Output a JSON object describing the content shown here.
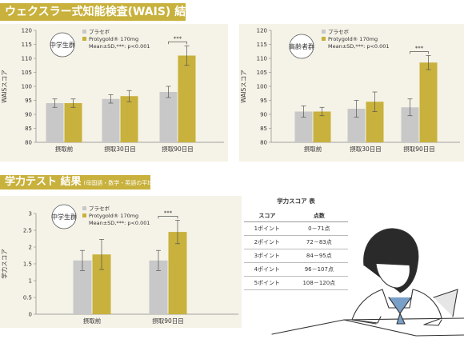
{
  "banners": {
    "wais": "ウェクスラー式知能検査(WAIS) 結果",
    "gakuryoku": "学力テスト 結果",
    "gakuryoku_sub": "(母国語・数学・英語の平均)"
  },
  "colors": {
    "placebo": "#c8c8c8",
    "protygold": "#c8b13c",
    "panel": "#f5f2e7",
    "banner": "#c8b13c"
  },
  "legend": {
    "placebo": "プラセボ",
    "protygold": "Protygold® 170mg",
    "note": "Mean±SD,***: p<0.001"
  },
  "chart_data": [
    {
      "type": "bar",
      "group_label": "中学生群",
      "ylabel": "WAISスコア",
      "ylim": [
        80,
        120
      ],
      "yticks": [
        80,
        85,
        90,
        95,
        100,
        105,
        110,
        115,
        120
      ],
      "categories": [
        "摂取前",
        "摂取30日目",
        "摂取90日目"
      ],
      "series": [
        {
          "name": "プラセボ",
          "values": [
            94,
            95.5,
            98
          ],
          "err": [
            1.5,
            1.5,
            2
          ]
        },
        {
          "name": "Protygold® 170mg",
          "values": [
            94,
            96.5,
            111
          ],
          "err": [
            1.5,
            2,
            3.5
          ]
        }
      ],
      "significance": [
        {
          "category": 2,
          "label": "***"
        }
      ]
    },
    {
      "type": "bar",
      "group_label": "高齢者群",
      "ylabel": "WAISスコア",
      "ylim": [
        80,
        120
      ],
      "yticks": [
        80,
        85,
        90,
        95,
        100,
        105,
        110,
        115,
        120
      ],
      "categories": [
        "摂取前",
        "摂取30日目",
        "摂取90日目"
      ],
      "series": [
        {
          "name": "プラセボ",
          "values": [
            91,
            92,
            92.5
          ],
          "err": [
            2,
            3,
            3
          ]
        },
        {
          "name": "Protygold® 170mg",
          "values": [
            91,
            94.5,
            108.5
          ],
          "err": [
            1.5,
            3.5,
            2.5
          ]
        }
      ],
      "significance": [
        {
          "category": 2,
          "label": "***"
        }
      ]
    },
    {
      "type": "bar",
      "group_label": "中学生群",
      "ylabel": "学力スコア",
      "ylim": [
        0,
        3
      ],
      "yticks": [
        0,
        0.5,
        1,
        1.5,
        2,
        2.5,
        3
      ],
      "categories": [
        "摂取前",
        "摂取90日目"
      ],
      "series": [
        {
          "name": "プラセボ",
          "values": [
            1.6,
            1.6
          ],
          "err": [
            0.3,
            0.3
          ]
        },
        {
          "name": "Protygold® 170mg",
          "values": [
            1.78,
            2.45
          ],
          "err": [
            0.45,
            0.35
          ]
        }
      ],
      "significance": [
        {
          "category": 1,
          "label": "***"
        }
      ]
    }
  ],
  "score_table": {
    "title": "学力スコア 表",
    "headers": [
      "スコア",
      "点数"
    ],
    "rows": [
      [
        "1ポイント",
        "0－71点"
      ],
      [
        "2ポイント",
        "72－83点"
      ],
      [
        "3ポイント",
        "84－95点"
      ],
      [
        "4ポイント",
        "96－107点"
      ],
      [
        "5ポイント",
        "108－120点"
      ]
    ]
  }
}
